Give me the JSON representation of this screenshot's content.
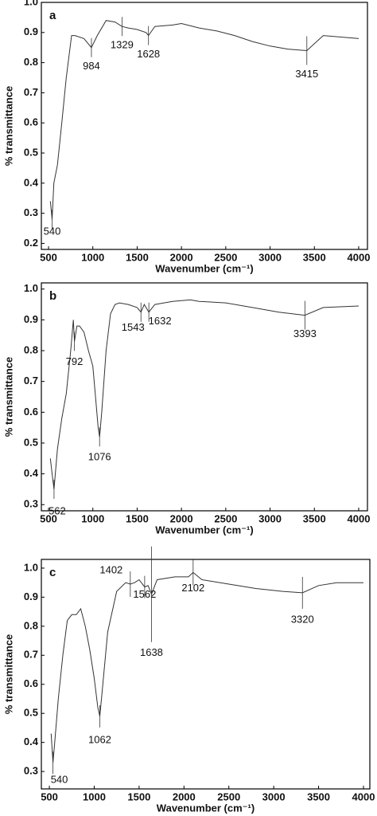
{
  "chart_data": [
    {
      "type": "line",
      "title": "a",
      "x_label": "Wavenumber (cm⁻¹)",
      "y_label": "% transmittance",
      "xlim": [
        419,
        4099
      ],
      "ylim": [
        0.18,
        1.0
      ],
      "xticks": [
        500,
        1000,
        1500,
        2000,
        2500,
        3000,
        3500,
        4000
      ],
      "yticks": [
        0.2,
        0.3,
        0.4,
        0.5,
        0.6,
        0.7,
        0.8,
        0.9,
        {
          "value": 1,
          "label": "1.0"
        }
      ],
      "color": "#333333",
      "x": [
        520,
        540,
        560,
        600,
        650,
        700,
        760,
        800,
        900,
        984,
        1050,
        1150,
        1250,
        1329,
        1400,
        1500,
        1600,
        1628,
        1700,
        1900,
        2000,
        2200,
        2400,
        2600,
        2800,
        3000,
        3200,
        3415,
        3600,
        4000
      ],
      "values": [
        0.34,
        0.28,
        0.4,
        0.46,
        0.6,
        0.75,
        0.89,
        0.89,
        0.88,
        0.85,
        0.89,
        0.94,
        0.935,
        0.92,
        0.915,
        0.91,
        0.9,
        0.89,
        0.92,
        0.925,
        0.93,
        0.915,
        0.905,
        0.89,
        0.87,
        0.855,
        0.845,
        0.84,
        0.89,
        0.88
      ],
      "peaks": [
        540,
        984,
        1329,
        1628,
        3415
      ]
    },
    {
      "type": "line",
      "title": "b",
      "x_label": "Wavenumber (cm⁻¹)",
      "y_label": "% transmittance",
      "xlim": [
        419,
        4099
      ],
      "ylim": [
        0.28,
        1.02
      ],
      "xticks": [
        500,
        1000,
        1500,
        2000,
        2500,
        3000,
        3500,
        4000
      ],
      "yticks": [
        0.3,
        0.4,
        0.5,
        0.6,
        0.7,
        0.8,
        0.9,
        {
          "value": 1,
          "label": "1.0"
        }
      ],
      "color": "#333333",
      "x": [
        520,
        540,
        562,
        600,
        650,
        700,
        750,
        780,
        792,
        820,
        850,
        900,
        950,
        1000,
        1030,
        1060,
        1076,
        1100,
        1150,
        1200,
        1250,
        1300,
        1400,
        1500,
        1543,
        1580,
        1632,
        1700,
        1900,
        2100,
        2200,
        2500,
        2800,
        3100,
        3393,
        3600,
        4000
      ],
      "values": [
        0.45,
        0.4,
        0.35,
        0.48,
        0.58,
        0.66,
        0.8,
        0.9,
        0.83,
        0.88,
        0.88,
        0.86,
        0.8,
        0.75,
        0.65,
        0.55,
        0.52,
        0.6,
        0.8,
        0.92,
        0.95,
        0.955,
        0.95,
        0.94,
        0.925,
        0.95,
        0.925,
        0.95,
        0.96,
        0.965,
        0.96,
        0.955,
        0.94,
        0.925,
        0.915,
        0.94,
        0.945
      ],
      "peaks": [
        562,
        792,
        1076,
        1543,
        1632,
        3393
      ]
    },
    {
      "type": "line",
      "title": "c",
      "x_label": "Wavenumber (cm⁻¹)",
      "y_label": "% transmittance",
      "xlim": [
        411,
        4071
      ],
      "ylim": [
        0.24,
        1.03
      ],
      "xticks": [
        500,
        1000,
        1500,
        2000,
        2500,
        3000,
        3500,
        4000
      ],
      "yticks": [
        0.3,
        0.4,
        0.5,
        0.6,
        0.7,
        0.8,
        0.9,
        {
          "value": 1,
          "label": "1.0"
        }
      ],
      "color": "#333333",
      "x": [
        520,
        540,
        560,
        600,
        650,
        700,
        750,
        800,
        850,
        900,
        950,
        1000,
        1040,
        1062,
        1090,
        1150,
        1250,
        1350,
        1402,
        1450,
        1500,
        1562,
        1600,
        1638,
        1700,
        1900,
        2050,
        2102,
        2200,
        2500,
        2800,
        3100,
        3320,
        3500,
        3700,
        4000
      ],
      "values": [
        0.43,
        0.33,
        0.4,
        0.55,
        0.7,
        0.82,
        0.84,
        0.84,
        0.86,
        0.8,
        0.72,
        0.62,
        0.52,
        0.49,
        0.58,
        0.78,
        0.92,
        0.95,
        0.945,
        0.95,
        0.96,
        0.935,
        0.94,
        0.91,
        0.96,
        0.97,
        0.97,
        0.985,
        0.96,
        0.945,
        0.93,
        0.92,
        0.915,
        0.94,
        0.95,
        0.95
      ],
      "peaks": [
        540,
        1062,
        1402,
        1562,
        1638,
        2102,
        3320
      ]
    }
  ]
}
